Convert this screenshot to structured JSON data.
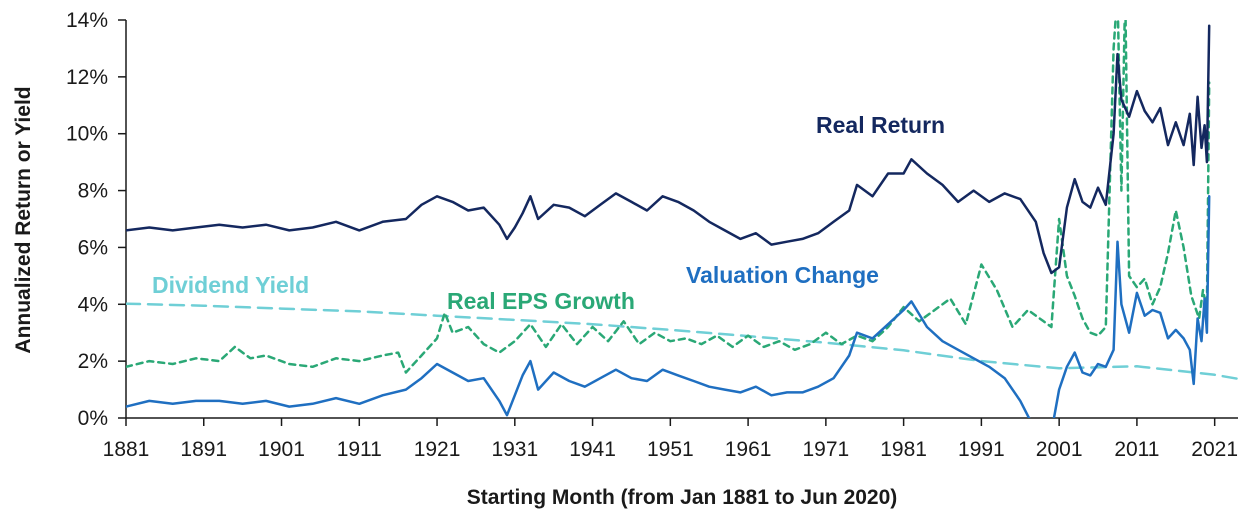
{
  "chart_data": {
    "type": "line",
    "title": "",
    "xlabel": "Starting Month (from Jan 1881 to Jun 2020)",
    "ylabel": "Annualized Return or Yield",
    "xlim": [
      1881,
      2024
    ],
    "ylim": [
      0,
      14
    ],
    "x_ticks": [
      "1881",
      "1891",
      "1901",
      "1911",
      "1921",
      "1931",
      "1941",
      "1951",
      "1961",
      "1971",
      "1981",
      "1991",
      "2001",
      "2011",
      "2021"
    ],
    "y_ticks": [
      "0%",
      "2%",
      "4%",
      "6%",
      "8%",
      "10%",
      "12%",
      "14%"
    ],
    "grid": false,
    "colors": {
      "real_return": "#14285f",
      "valuation_change": "#1f6fc1",
      "real_eps_growth": "#2aa876",
      "dividend_yield": "#6fcfd6",
      "axis": "#1a1a1a"
    },
    "series": [
      {
        "name": "Real Return",
        "label": "Real Return",
        "style": "solid",
        "x": [
          1881,
          1884,
          1887,
          1890,
          1893,
          1896,
          1899,
          1902,
          1905,
          1908,
          1911,
          1914,
          1917,
          1919,
          1921,
          1923,
          1925,
          1927,
          1929,
          1930,
          1931,
          1932,
          1933,
          1934,
          1936,
          1938,
          1940,
          1942,
          1944,
          1946,
          1948,
          1950,
          1952,
          1954,
          1956,
          1958,
          1960,
          1962,
          1964,
          1966,
          1968,
          1970,
          1972,
          1974,
          1975,
          1977,
          1979,
          1981,
          1982,
          1984,
          1986,
          1988,
          1990,
          1992,
          1994,
          1996,
          1998,
          1999,
          2000,
          2001,
          2002,
          2003,
          2004,
          2005,
          2006,
          2007,
          2008,
          2008.5,
          2009,
          2010,
          2011,
          2012,
          2013,
          2014,
          2015,
          2016,
          2017,
          2017.8,
          2018.3,
          2018.8,
          2019.3,
          2019.7,
          2020,
          2020.3
        ],
        "values": [
          6.6,
          6.7,
          6.6,
          6.7,
          6.8,
          6.7,
          6.8,
          6.6,
          6.7,
          6.9,
          6.6,
          6.9,
          7.0,
          7.5,
          7.8,
          7.6,
          7.3,
          7.4,
          6.8,
          6.3,
          6.7,
          7.2,
          7.8,
          7.0,
          7.5,
          7.4,
          7.1,
          7.5,
          7.9,
          7.6,
          7.3,
          7.8,
          7.6,
          7.3,
          6.9,
          6.6,
          6.3,
          6.5,
          6.1,
          6.2,
          6.3,
          6.5,
          6.9,
          7.3,
          8.2,
          7.8,
          8.6,
          8.6,
          9.1,
          8.6,
          8.2,
          7.6,
          8.0,
          7.6,
          7.9,
          7.7,
          6.9,
          5.8,
          5.1,
          5.3,
          7.4,
          8.4,
          7.6,
          7.4,
          8.1,
          7.5,
          10.0,
          12.8,
          11.2,
          10.6,
          11.5,
          10.8,
          10.4,
          10.9,
          9.6,
          10.4,
          9.6,
          10.7,
          8.9,
          11.3,
          9.5,
          10.3,
          9.0,
          13.8
        ]
      },
      {
        "name": "Valuation Change",
        "label": "Valuation Change",
        "style": "solid",
        "x": [
          1881,
          1884,
          1887,
          1890,
          1893,
          1896,
          1899,
          1902,
          1905,
          1908,
          1911,
          1914,
          1917,
          1919,
          1921,
          1923,
          1925,
          1927,
          1929,
          1930,
          1931,
          1932,
          1933,
          1934,
          1936,
          1938,
          1940,
          1942,
          1944,
          1946,
          1948,
          1950,
          1952,
          1954,
          1956,
          1958,
          1960,
          1962,
          1964,
          1966,
          1968,
          1970,
          1972,
          1974,
          1975,
          1977,
          1979,
          1981,
          1982,
          1984,
          1986,
          1988,
          1990,
          1992,
          1994,
          1996,
          1997.5,
          1998.3,
          2000,
          2001,
          2002,
          2003,
          2004,
          2005,
          2006,
          2007,
          2008,
          2008.5,
          2009,
          2010,
          2011,
          2012,
          2013,
          2014,
          2015,
          2016,
          2017,
          2017.8,
          2018.3,
          2018.8,
          2019.3,
          2019.7,
          2020,
          2020.3
        ],
        "values": [
          0.4,
          0.6,
          0.5,
          0.6,
          0.6,
          0.5,
          0.6,
          0.4,
          0.5,
          0.7,
          0.5,
          0.8,
          1.0,
          1.4,
          1.9,
          1.6,
          1.3,
          1.4,
          0.6,
          0.1,
          0.8,
          1.5,
          2.0,
          1.0,
          1.6,
          1.3,
          1.1,
          1.4,
          1.7,
          1.4,
          1.3,
          1.7,
          1.5,
          1.3,
          1.1,
          1.0,
          0.9,
          1.1,
          0.8,
          0.9,
          0.9,
          1.1,
          1.4,
          2.2,
          3.0,
          2.8,
          3.3,
          3.8,
          4.1,
          3.2,
          2.7,
          2.4,
          2.1,
          1.8,
          1.4,
          0.6,
          -0.2,
          -0.5,
          -0.5,
          1.0,
          1.8,
          2.3,
          1.6,
          1.5,
          1.9,
          1.8,
          2.4,
          6.2,
          4.0,
          3.0,
          4.4,
          3.6,
          3.8,
          3.7,
          2.8,
          3.1,
          2.8,
          2.4,
          1.2,
          3.5,
          2.7,
          4.2,
          3.0,
          7.8
        ]
      },
      {
        "name": "Real EPS Growth",
        "label": "Real EPS Growth",
        "style": "dashed",
        "x": [
          1881,
          1884,
          1887,
          1890,
          1893,
          1895,
          1897,
          1899,
          1902,
          1905,
          1908,
          1911,
          1914,
          1916,
          1917,
          1919,
          1921,
          1922,
          1923,
          1925,
          1927,
          1929,
          1931,
          1933,
          1935,
          1937,
          1939,
          1941,
          1943,
          1945,
          1947,
          1949,
          1951,
          1953,
          1955,
          1957,
          1959,
          1961,
          1963,
          1965,
          1967,
          1969,
          1971,
          1973,
          1975,
          1977,
          1979,
          1981,
          1983,
          1985,
          1987,
          1989,
          1991,
          1993,
          1995,
          1997,
          1999,
          2000,
          2001,
          2002,
          2003,
          2004,
          2005,
          2006,
          2007,
          2008,
          2008.5,
          2009,
          2009.5,
          2010,
          2011,
          2012,
          2013,
          2014,
          2015,
          2016,
          2017,
          2018,
          2019,
          2019.5,
          2020,
          2020.3
        ],
        "values": [
          1.8,
          2.0,
          1.9,
          2.1,
          2.0,
          2.5,
          2.1,
          2.2,
          1.9,
          1.8,
          2.1,
          2.0,
          2.2,
          2.3,
          1.6,
          2.2,
          2.8,
          3.7,
          3.0,
          3.2,
          2.6,
          2.3,
          2.7,
          3.3,
          2.5,
          3.3,
          2.6,
          3.2,
          2.7,
          3.4,
          2.6,
          3.0,
          2.7,
          2.8,
          2.6,
          2.9,
          2.5,
          2.9,
          2.5,
          2.7,
          2.4,
          2.6,
          3.0,
          2.6,
          2.9,
          2.7,
          3.2,
          3.9,
          3.4,
          3.8,
          4.2,
          3.3,
          5.4,
          4.5,
          3.2,
          3.8,
          3.4,
          3.2,
          7.0,
          5.0,
          4.3,
          3.5,
          3.0,
          2.9,
          3.2,
          13.0,
          15.0,
          8.0,
          15.0,
          5.0,
          4.6,
          4.9,
          4.0,
          4.6,
          5.8,
          7.3,
          6.0,
          4.3,
          3.5,
          4.5,
          3.8,
          11.8
        ]
      },
      {
        "name": "Dividend Yield",
        "label": "Dividend Yield",
        "style": "dashed",
        "x": [
          1881,
          1891,
          1901,
          1911,
          1921,
          1931,
          1941,
          1951,
          1961,
          1971,
          1981,
          1991,
          2001,
          2011,
          2021,
          2024
        ],
        "values": [
          4.02,
          3.95,
          3.85,
          3.75,
          3.6,
          3.45,
          3.3,
          3.1,
          2.88,
          2.65,
          2.38,
          2.0,
          1.75,
          1.82,
          1.52,
          1.38
        ]
      }
    ]
  }
}
